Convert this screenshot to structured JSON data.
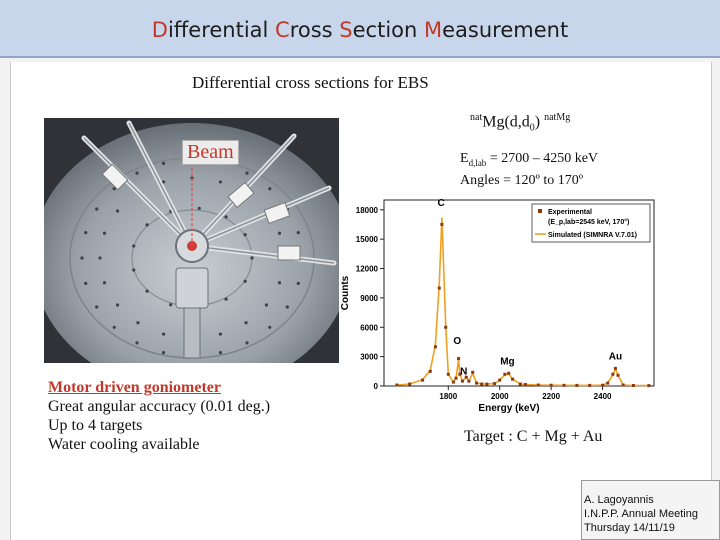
{
  "header": {
    "title_parts": [
      {
        "initial": "D",
        "rest": "ifferential "
      },
      {
        "initial": "C",
        "rest": "ross "
      },
      {
        "initial": "S",
        "rest": "ection "
      },
      {
        "initial": "M",
        "rest": "easurement"
      }
    ]
  },
  "slide": {
    "subtitle": "Differential cross sections for EBS",
    "reaction": {
      "pre_sup": "nat",
      "main": "Mg(d,d",
      "sub": "0",
      "close": ")",
      "post_sup": "nat",
      "post": "Mg"
    },
    "energy": {
      "prefix": "E",
      "sub": "d,lab",
      "rest": " = 2700 – 4250 keV"
    },
    "angles": "Angles = 120º to 170º",
    "photo_label": "Beam",
    "features": {
      "heading": "Motor driven goniometer",
      "items": [
        "Great angular accuracy (0.01 deg.)",
        "Up to 4 targets",
        "Water cooling available"
      ]
    },
    "target": "Target : C + Mg + Au",
    "credit": [
      "A. Lagoyannis",
      "I.N.P.P. Annual Meeting",
      "Thursday 14/11/19"
    ]
  },
  "colors": {
    "accent": "#c0392b",
    "experimental": "#8b3a10",
    "simulated": "#f0a020"
  },
  "chart_data": {
    "type": "line",
    "xlabel": "Energy (keV)",
    "ylabel": "Counts",
    "xlim": [
      1550,
      2600
    ],
    "ylim": [
      0,
      19000
    ],
    "xticks": [
      1800,
      2000,
      2200,
      2400
    ],
    "yticks": [
      0,
      3000,
      6000,
      9000,
      12000,
      15000,
      18000
    ],
    "legend": {
      "position": "top-right",
      "entries": [
        "Experimental",
        "(E_p,lab=2545 keV, 170°)",
        "Simulated (SIMNRA V.7.01)"
      ]
    },
    "peak_labels": [
      {
        "text": "C",
        "x": 1772,
        "y": 18400
      },
      {
        "text": "O",
        "x": 1835,
        "y": 4300
      },
      {
        "text": "N",
        "x": 1860,
        "y": 1200
      },
      {
        "text": "Mg",
        "x": 2030,
        "y": 2200
      },
      {
        "text": "Au",
        "x": 2450,
        "y": 2700
      }
    ],
    "series": [
      {
        "name": "Experimental",
        "x": [
          1600,
          1650,
          1700,
          1730,
          1750,
          1765,
          1775,
          1790,
          1800,
          1820,
          1830,
          1840,
          1845,
          1855,
          1870,
          1880,
          1895,
          1910,
          1930,
          1950,
          1980,
          2000,
          2020,
          2035,
          2050,
          2080,
          2100,
          2150,
          2200,
          2250,
          2300,
          2350,
          2400,
          2420,
          2440,
          2450,
          2460,
          2480,
          2520,
          2580
        ],
        "y": [
          100,
          200,
          600,
          1500,
          4000,
          10000,
          16500,
          6000,
          1200,
          400,
          800,
          2800,
          1200,
          500,
          900,
          500,
          1400,
          300,
          200,
          200,
          250,
          600,
          1200,
          1300,
          700,
          200,
          150,
          100,
          80,
          70,
          60,
          60,
          80,
          300,
          1200,
          1800,
          1100,
          100,
          50,
          40
        ]
      },
      {
        "name": "Simulated (SIMNRA V.7.01)",
        "x": [
          1600,
          1650,
          1700,
          1730,
          1750,
          1765,
          1775,
          1790,
          1800,
          1820,
          1830,
          1840,
          1845,
          1855,
          1870,
          1880,
          1895,
          1910,
          1930,
          1950,
          1980,
          2000,
          2020,
          2035,
          2050,
          2080,
          2100,
          2150,
          2200,
          2250,
          2300,
          2350,
          2400,
          2420,
          2440,
          2450,
          2460,
          2480,
          2520,
          2580
        ],
        "y": [
          100,
          200,
          650,
          1600,
          4200,
          10500,
          17200,
          6200,
          1200,
          400,
          800,
          2700,
          1200,
          500,
          900,
          500,
          1300,
          300,
          200,
          200,
          250,
          600,
          1150,
          1250,
          700,
          200,
          150,
          100,
          80,
          70,
          60,
          60,
          80,
          300,
          1150,
          1750,
          1100,
          100,
          50,
          40
        ]
      }
    ]
  }
}
